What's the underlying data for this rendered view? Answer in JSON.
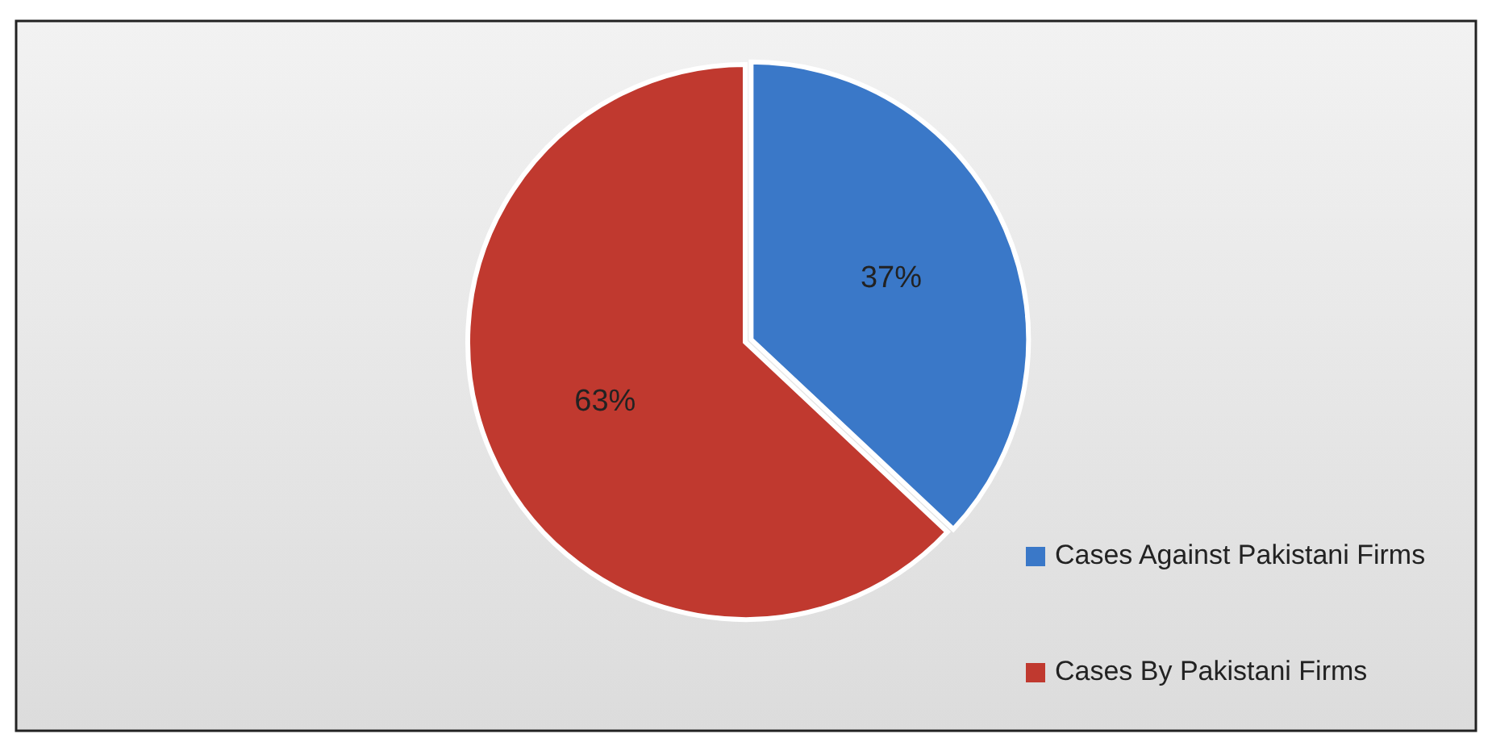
{
  "chart_data": {
    "type": "pie",
    "categories": [
      "Cases Against Pakistani Firms",
      "Cases By Pakistani Firms"
    ],
    "values": [
      37,
      63
    ],
    "colors": [
      "#3a78c8",
      "#c0392f"
    ],
    "value_labels": [
      "37%",
      "63%"
    ],
    "legend": "bottom right"
  }
}
